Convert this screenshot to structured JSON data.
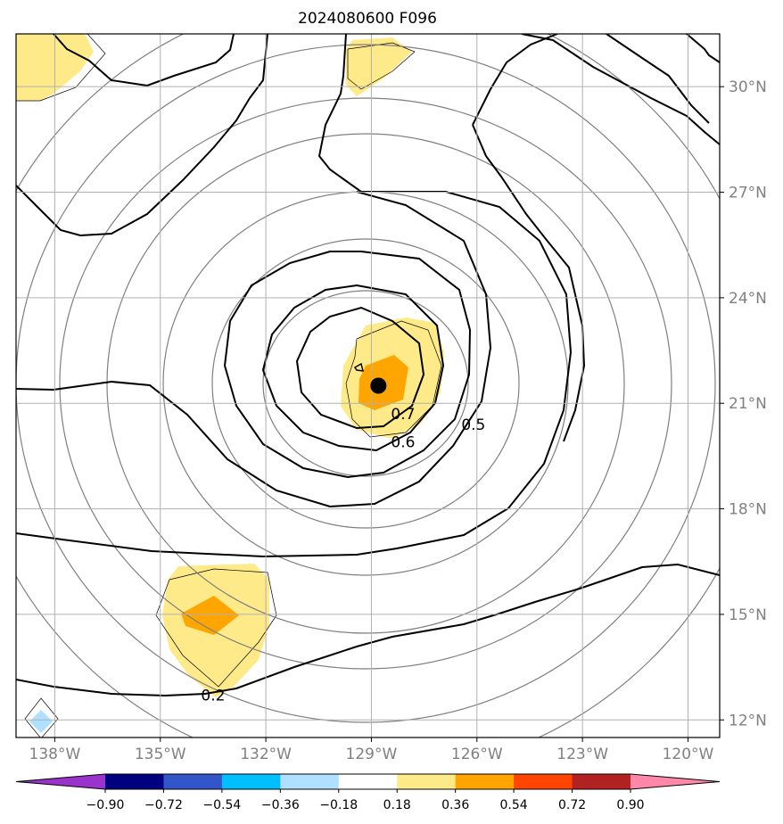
{
  "title": "2024080600 F096",
  "map": {
    "lon_range": [
      -139.1,
      -119.1
    ],
    "lat_range": [
      11.5,
      31.5
    ],
    "lon_ticks": [
      {
        "value": -138,
        "label": "138°W"
      },
      {
        "value": -135,
        "label": "135°W"
      },
      {
        "value": -132,
        "label": "132°W"
      },
      {
        "value": -129,
        "label": "129°W"
      },
      {
        "value": -126,
        "label": "126°W"
      },
      {
        "value": -123,
        "label": "123°W"
      },
      {
        "value": -120,
        "label": "120°W"
      }
    ],
    "lat_ticks": [
      {
        "value": 12,
        "label": "12°N"
      },
      {
        "value": 15,
        "label": "15°N"
      },
      {
        "value": 18,
        "label": "18°N"
      },
      {
        "value": 21,
        "label": "21°N"
      },
      {
        "value": 24,
        "label": "24°N"
      },
      {
        "value": 27,
        "label": "27°N"
      },
      {
        "value": 30,
        "label": "30°N"
      }
    ],
    "grid_color": "#b0b0b0",
    "label_color": "#808080"
  },
  "storm_center": {
    "lon": -128.8,
    "lat": 21.5
  },
  "contour_labels": [
    {
      "text": "0.7",
      "lon": -128.1,
      "lat": 20.7
    },
    {
      "text": "0.6",
      "lon": -128.1,
      "lat": 19.9
    },
    {
      "text": "0.5",
      "lon": -126.1,
      "lat": 20.4
    },
    {
      "text": "0.2",
      "lon": -133.5,
      "lat": 12.7
    }
  ],
  "colorbar": {
    "colors": [
      "#9933cc",
      "#000080",
      "#3355cc",
      "#00bfff",
      "#b0e0ff",
      "#ffffff",
      "#ffea8a",
      "#ffa500",
      "#ff4500",
      "#b22222",
      "#ff88aa"
    ],
    "tick_labels": [
      "−0.90",
      "−0.72",
      "−0.54",
      "−0.36",
      "−0.18",
      "0.18",
      "0.36",
      "0.54",
      "0.72",
      "0.90"
    ]
  }
}
